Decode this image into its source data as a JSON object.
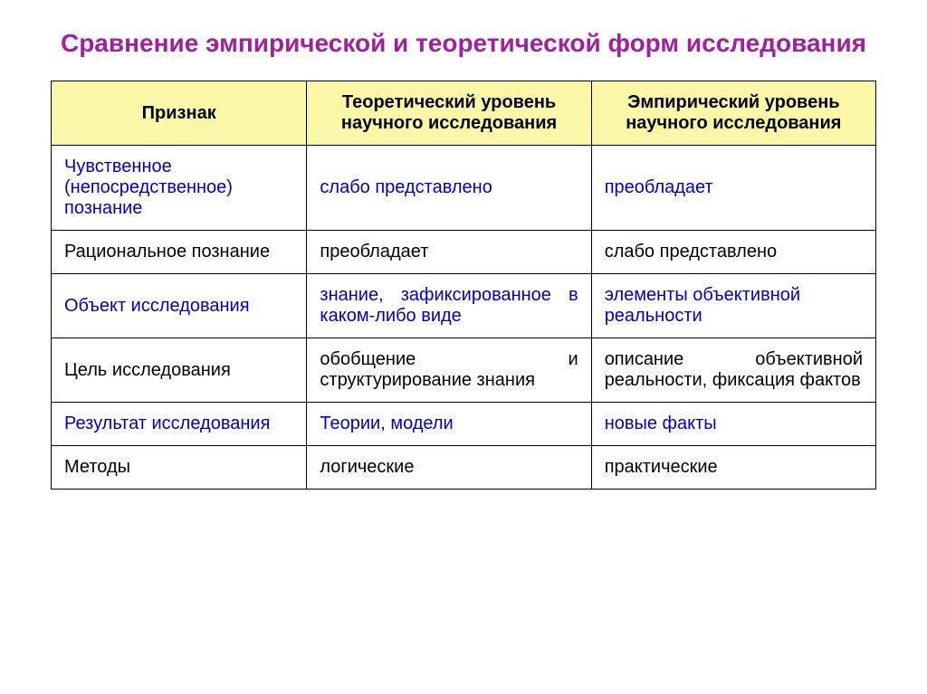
{
  "title": {
    "text": "Сравнение эмпирической и теоретической форм исследования",
    "color": "#a020a0",
    "fontsize": 28
  },
  "table": {
    "header_bg": "#fbf9a8",
    "header_color": "#000000",
    "body_fontsize": 20,
    "header_fontsize": 20,
    "accent_color": "#0000c8",
    "plain_color": "#000000",
    "columns": [
      "Признак",
      "Теоретический уровень научного исследования",
      "Эмпирический уровень научного исследования"
    ],
    "rows": [
      {
        "a": "Чувственное (непосредственное) познание",
        "b": "слабо представлено",
        "c": "преобладает",
        "accent": true
      },
      {
        "a": "Рациональное  познание",
        "b": "преобладает",
        "c": "слабо представлено",
        "accent": false
      },
      {
        "a": "Объект исследования",
        "b": "знание, зафиксированное в каком-либо виде",
        "c": "элементы объективной реальности",
        "accent": true,
        "b_justify": true
      },
      {
        "a": "Цель исследования",
        "b": "обобщение и структурирование знания",
        "c": "описание объективной реальности, фиксация фактов",
        "accent": false,
        "b_justify": true,
        "c_justify": true
      },
      {
        "a": "Результат исследования",
        "b": "Теории, модели",
        "c": "новые факты",
        "accent": true
      },
      {
        "a": "Методы",
        "b": "логические",
        "c": "практические",
        "accent": false
      }
    ]
  }
}
